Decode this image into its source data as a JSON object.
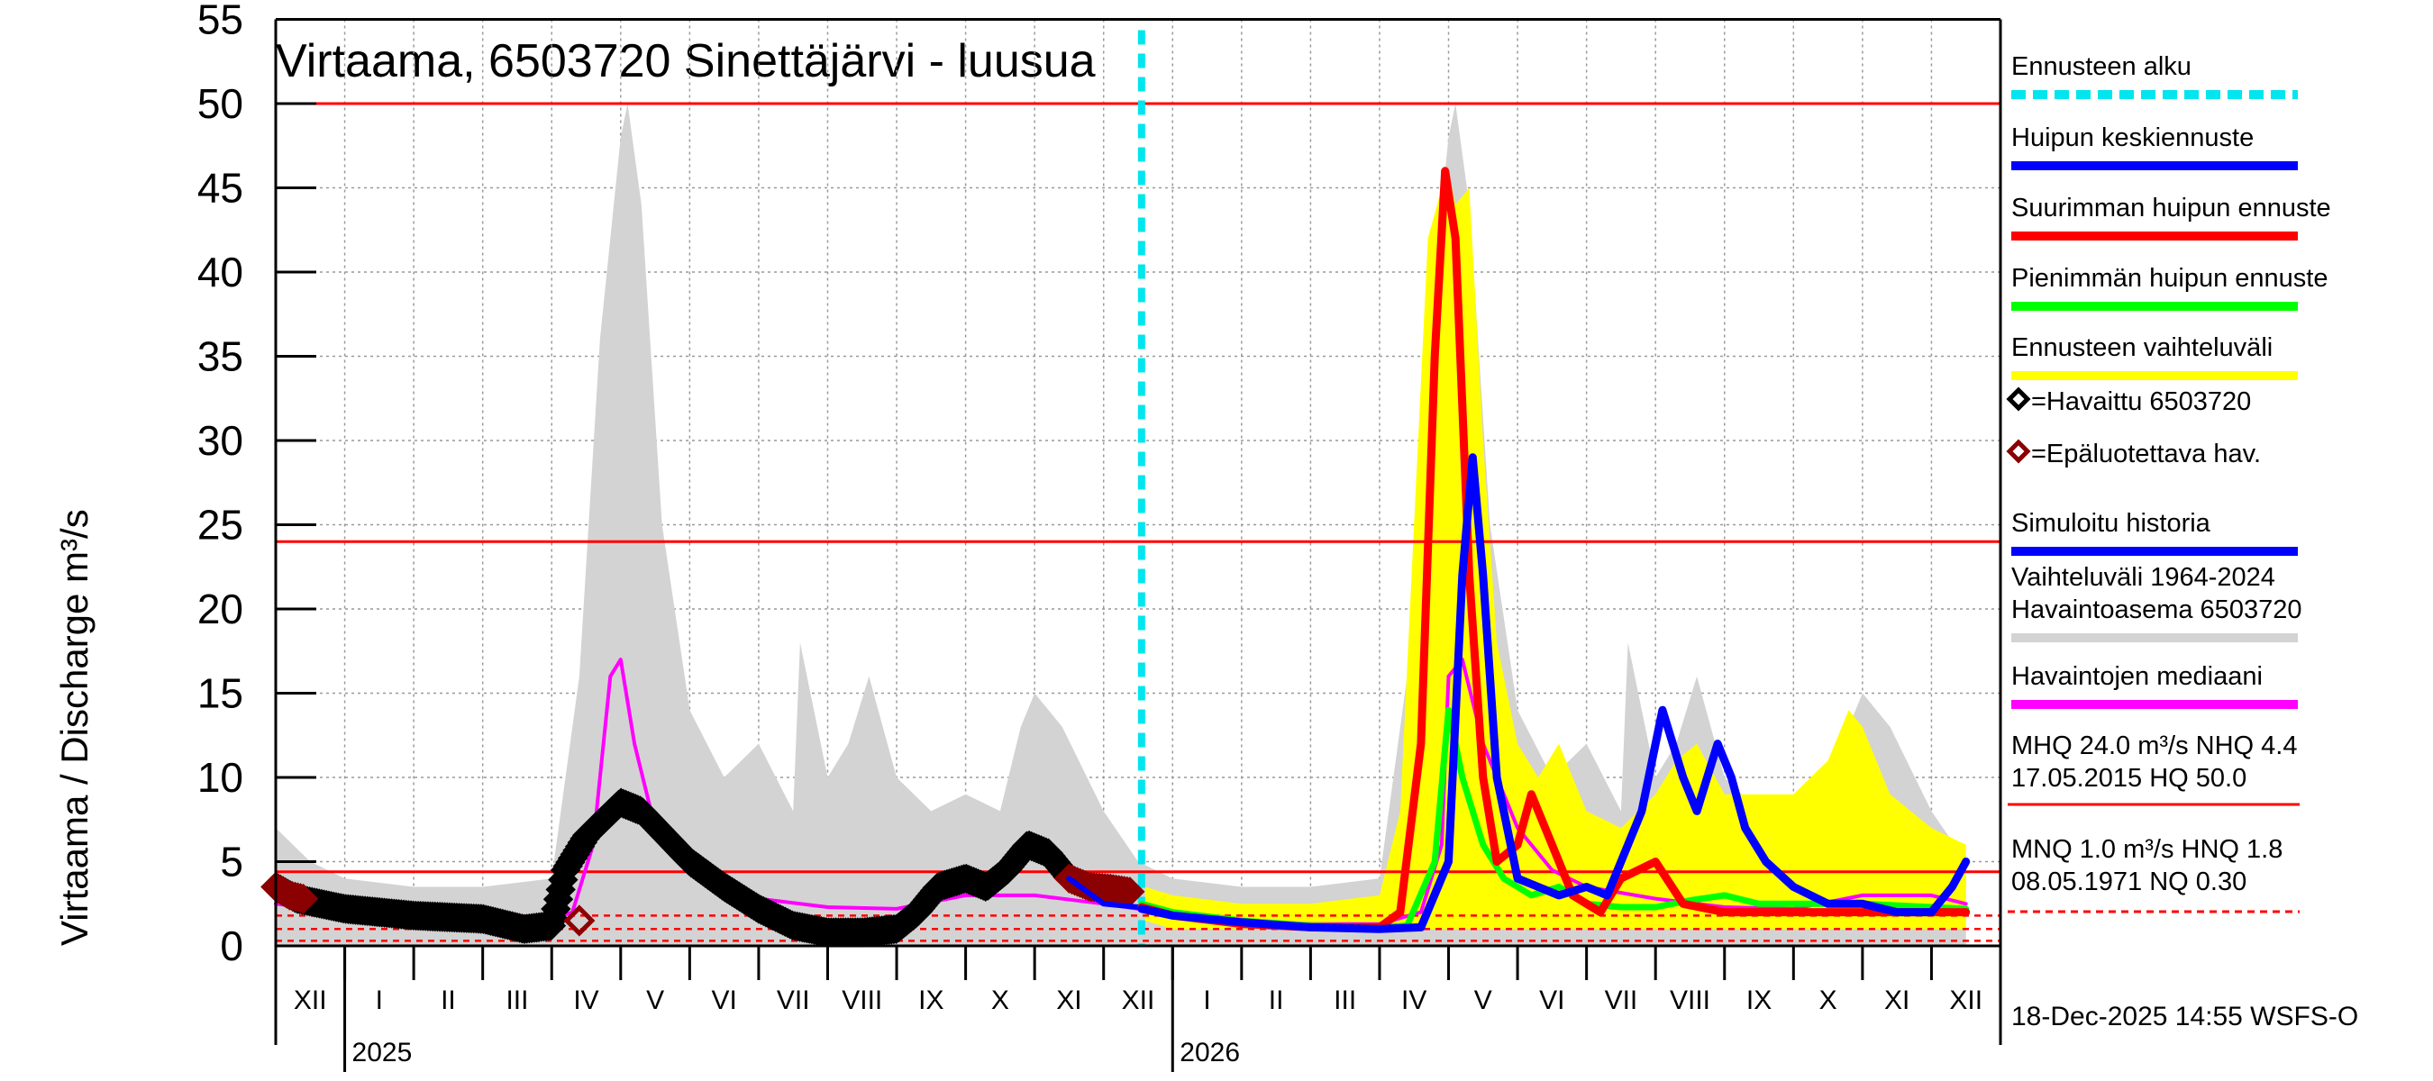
{
  "chart_data": {
    "type": "line",
    "title": "Virtaama, 6503720 Sinettäjärvi - luusua",
    "ylabel": "Virtaama / Discharge   m³/s",
    "ylim": [
      0,
      55
    ],
    "yticks": [
      "0",
      "5",
      "10",
      "15",
      "20",
      "25",
      "30",
      "35",
      "40",
      "45",
      "50",
      "55"
    ],
    "month_labels": [
      "XII",
      "I",
      "II",
      "III",
      "IV",
      "V",
      "VI",
      "VII",
      "VIII",
      "IX",
      "X",
      "XI",
      "XII",
      "I",
      "II",
      "III",
      "IV",
      "V",
      "VI",
      "VII",
      "VIII",
      "IX",
      "X",
      "XI",
      "XII"
    ],
    "years": [
      "2025",
      "2026"
    ],
    "reference_lines": {
      "MHQ": 24.0,
      "HQ": 50.0,
      "MNQ": 1.0,
      "NQ": 0.3,
      "NHQ": 4.4,
      "HNQ": 1.8
    },
    "forecast_start_month_index": 12.55,
    "series": [
      {
        "name": "Vaihteluväli 1964-2024 Havaintoasema 6503720",
        "color": "#d3d3d3",
        "kind": "band",
        "x": [
          0,
          0.5,
          1,
          2,
          3,
          4,
          4.4,
          4.7,
          5.0,
          5.1,
          5.3,
          5.6,
          6,
          6.5,
          7,
          7.5,
          7.6,
          8,
          8.3,
          8.6,
          9,
          9.5,
          10,
          10.5,
          10.8,
          11,
          11.4,
          12,
          12.5,
          13,
          14,
          15,
          16,
          16.4,
          16.7,
          17.0,
          17.1,
          17.3,
          17.6,
          18,
          18.5,
          19,
          19.5,
          19.6,
          20,
          20.3,
          20.6,
          21,
          21.5,
          22,
          22.5,
          22.8,
          23,
          23.4,
          24,
          24.5
        ],
        "low": [
          0,
          0,
          0,
          0,
          0,
          0,
          0,
          0,
          0,
          0,
          0,
          0,
          0,
          0,
          0,
          0,
          0,
          0,
          0,
          0,
          0,
          0,
          0,
          0,
          0,
          0,
          0,
          0,
          0,
          0,
          0,
          0,
          0,
          0,
          0,
          0,
          0,
          0,
          0,
          0,
          0,
          0,
          0,
          0,
          0,
          0,
          0,
          0,
          0,
          0,
          0,
          0,
          0,
          0,
          0,
          0
        ],
        "high": [
          7,
          5,
          4,
          3.5,
          3.5,
          4,
          16,
          36,
          48,
          50,
          44,
          25,
          14,
          10,
          12,
          8,
          18,
          10,
          12,
          16,
          10,
          8,
          9,
          8,
          13,
          15,
          13,
          8,
          5,
          4,
          3.5,
          3.5,
          4,
          16,
          36,
          48,
          50,
          44,
          25,
          14,
          10,
          12,
          8,
          18,
          10,
          12,
          16,
          10,
          8,
          9,
          8,
          13,
          15,
          13,
          8,
          5
        ]
      },
      {
        "name": "Ennusteen vaihteluväli",
        "color": "#ffff00",
        "kind": "band",
        "x": [
          12.6,
          13,
          14,
          15,
          16,
          16.3,
          16.5,
          16.7,
          16.9,
          17.0,
          17.1,
          17.3,
          17.5,
          17.7,
          18,
          18.3,
          18.6,
          19,
          19.5,
          20,
          20.3,
          20.6,
          21,
          21.5,
          22,
          22.5,
          22.8,
          23,
          23.4,
          24,
          24.5
        ],
        "low": [
          1.5,
          1,
          1,
          1,
          1,
          1,
          1,
          1,
          1,
          1,
          1,
          1,
          1,
          1,
          1,
          1,
          1,
          1,
          1,
          1,
          1,
          1,
          1,
          1,
          1,
          1,
          1,
          1,
          1,
          1,
          1
        ],
        "high": [
          3.5,
          3,
          2.5,
          2.5,
          3,
          8,
          25,
          42,
          45,
          46,
          44,
          45,
          30,
          18,
          12,
          10,
          12,
          8,
          7,
          9,
          11,
          12,
          9,
          9,
          9,
          11,
          14,
          13,
          9,
          7,
          6
        ]
      },
      {
        "name": "Havaintojen mediaani",
        "color": "#ff00ff",
        "kind": "line",
        "x": [
          0,
          1,
          2,
          3,
          3.8,
          4.3,
          4.6,
          4.85,
          5.0,
          5.2,
          5.5,
          6,
          6.5,
          7,
          8,
          9,
          10,
          11,
          12,
          12.5,
          13,
          14,
          15,
          16,
          16.6,
          16.9,
          17.0,
          17.2,
          17.5,
          18,
          18.5,
          19,
          20,
          21,
          22,
          23,
          24,
          24.5
        ],
        "values": [
          2.5,
          2,
          1.5,
          1.3,
          1.3,
          2,
          6,
          16,
          17,
          12,
          7,
          4.5,
          3.5,
          2.8,
          2.3,
          2.2,
          3,
          3,
          2.5,
          2.2,
          2,
          1.5,
          1.3,
          1.3,
          2,
          6,
          16,
          17,
          12,
          7,
          4.5,
          3.5,
          2.8,
          2.3,
          2.2,
          3,
          3,
          2.5
        ]
      },
      {
        "name": "Havaittu 6503720",
        "color": "#000000",
        "kind": "observed",
        "x": [
          0,
          0.3,
          1,
          2,
          3,
          3.6,
          4.0,
          4.2,
          4.5,
          5.0,
          5.3,
          6,
          6.5,
          7,
          7.5,
          8,
          8.5,
          9,
          9.3,
          9.6,
          10,
          10.3,
          10.6,
          10.9,
          11.2,
          11.5
        ],
        "values": [
          3.5,
          2.8,
          2.2,
          1.8,
          1.6,
          1.0,
          1.2,
          4.5,
          6.5,
          8.5,
          8,
          5,
          3.5,
          2.2,
          1.2,
          0.8,
          0.8,
          1.0,
          2,
          3.5,
          4,
          3.5,
          4.5,
          6,
          5.5,
          4
        ]
      },
      {
        "name": "Epäluotettava hav.",
        "color": "#8b0000",
        "kind": "unreliable",
        "x": [
          0,
          0.2,
          0.4,
          4.4,
          11.5,
          11.8,
          12.1,
          12.4
        ],
        "values": [
          3.5,
          3,
          2.8,
          1.5,
          4,
          3.5,
          3.4,
          3.2
        ]
      },
      {
        "name": "Simuloitu historia",
        "color": "#0000ff",
        "kind": "line",
        "x": [
          11.5,
          12,
          12.5
        ],
        "values": [
          4,
          2.5,
          2.3
        ]
      },
      {
        "name": "Suurimman huipun ennuste",
        "color": "#ff0000",
        "kind": "line",
        "x": [
          12.55,
          13,
          14,
          15,
          16,
          16.3,
          16.6,
          16.8,
          16.95,
          17.1,
          17.3,
          17.5,
          17.7,
          18,
          18.2,
          18.5,
          18.8,
          19.2,
          19.5,
          20,
          20.4,
          21,
          22,
          23,
          24,
          24.5
        ],
        "values": [
          2.3,
          1.8,
          1.3,
          1.1,
          1.1,
          2,
          12,
          35,
          46,
          42,
          22,
          10,
          5,
          6,
          9,
          6,
          3,
          2,
          4,
          5,
          2.5,
          2,
          2,
          2,
          2,
          2
        ]
      },
      {
        "name": "Pienimmän huipun ennuste",
        "color": "#00ff00",
        "kind": "line",
        "x": [
          12.55,
          13,
          14,
          15,
          16,
          16.4,
          16.8,
          17.0,
          17.2,
          17.5,
          17.8,
          18.2,
          18.6,
          19,
          19.5,
          20,
          20.5,
          21,
          21.5,
          22,
          23,
          24,
          24.5
        ],
        "values": [
          2.5,
          2.0,
          1.5,
          1.2,
          1.1,
          1.2,
          5,
          14,
          10,
          6,
          4,
          3,
          3.5,
          2.5,
          2.3,
          2.3,
          2.7,
          3,
          2.5,
          2.5,
          2.5,
          2.3,
          2.2
        ]
      },
      {
        "name": "Huipun keskiennuste",
        "color": "#0000ff",
        "kind": "line",
        "x": [
          12.55,
          13,
          14,
          15,
          16,
          16.6,
          17.0,
          17.2,
          17.35,
          17.5,
          17.7,
          18,
          18.3,
          18.6,
          19,
          19.3,
          19.6,
          19.8,
          20.1,
          20.4,
          20.6,
          20.9,
          21.1,
          21.3,
          21.6,
          22,
          22.5,
          23,
          23.5,
          24,
          24.3,
          24.5
        ],
        "values": [
          2.2,
          1.8,
          1.4,
          1.1,
          1.0,
          1.1,
          5,
          22,
          29,
          22,
          10,
          4,
          3.5,
          3,
          3.5,
          3,
          6,
          8,
          14,
          10,
          8,
          12,
          10,
          7,
          5,
          3.5,
          2.5,
          2.5,
          2,
          2,
          3.5,
          5
        ]
      }
    ]
  },
  "legend": [
    {
      "label": "Ennusteen alku",
      "color": "#00e5ee",
      "style": "dashed"
    },
    {
      "label": "Huipun keskiennuste",
      "color": "#0000ff",
      "style": "line"
    },
    {
      "label": "Suurimman huipun ennuste",
      "color": "#ff0000",
      "style": "line"
    },
    {
      "label": "Pienimmän huipun ennuste",
      "color": "#00ff00",
      "style": "line"
    },
    {
      "label": "Ennusteen vaihteluväli",
      "color": "#ffff00",
      "style": "line"
    },
    {
      "label": "=Havaittu 6503720",
      "color": "#000000",
      "style": "diamond"
    },
    {
      "label": "=Epäluotettava hav.",
      "color": "#8b0000",
      "style": "diamond"
    },
    {
      "label": "Simuloitu historia",
      "color": "#0000ff",
      "style": "line"
    },
    {
      "label": "Vaihteluväli 1964-2024",
      "label2": "Havaintoasema 6503720",
      "color": "#d3d3d3",
      "style": "line"
    },
    {
      "label": "Havaintojen mediaani",
      "color": "#ff00ff",
      "style": "line"
    }
  ],
  "stats": {
    "line1": "MHQ 24.0 m³/s NHQ  4.4",
    "line2": "17.05.2015 HQ 50.0",
    "line3": "MNQ  1.0 m³/s HNQ  1.8",
    "line4": "08.05.1971 NQ 0.30"
  },
  "footer": "18-Dec-2025 14:55 WSFS-O"
}
